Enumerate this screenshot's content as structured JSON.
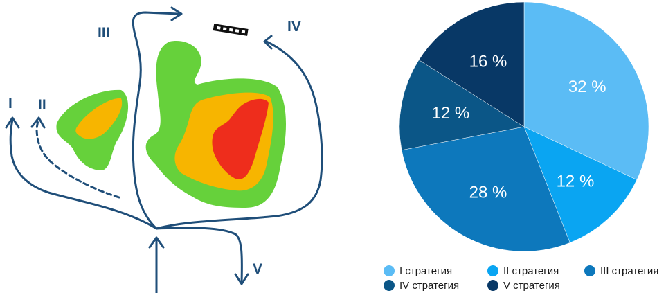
{
  "diagram": {
    "route_labels": [
      "I",
      "II",
      "III",
      "IV",
      "V"
    ]
  },
  "chart_data": {
    "type": "pie",
    "categories": [
      "I стратегия",
      "II стратегия",
      "III стратегия",
      "IV стратегия",
      "V стратегия"
    ],
    "values": [
      32,
      12,
      28,
      12,
      16
    ],
    "value_labels": [
      "32 %",
      "12 %",
      "28 %",
      "12 %",
      "16 %"
    ],
    "colors": [
      "#5bbcf5",
      "#0aa5f2",
      "#0d78bc",
      "#0b5687",
      "#083866"
    ],
    "legend": {
      "placement": "bottom",
      "entries": [
        "I стратегия",
        "II стратегия",
        "III стратегия",
        "IV стратегия",
        "V стратегия"
      ]
    }
  }
}
